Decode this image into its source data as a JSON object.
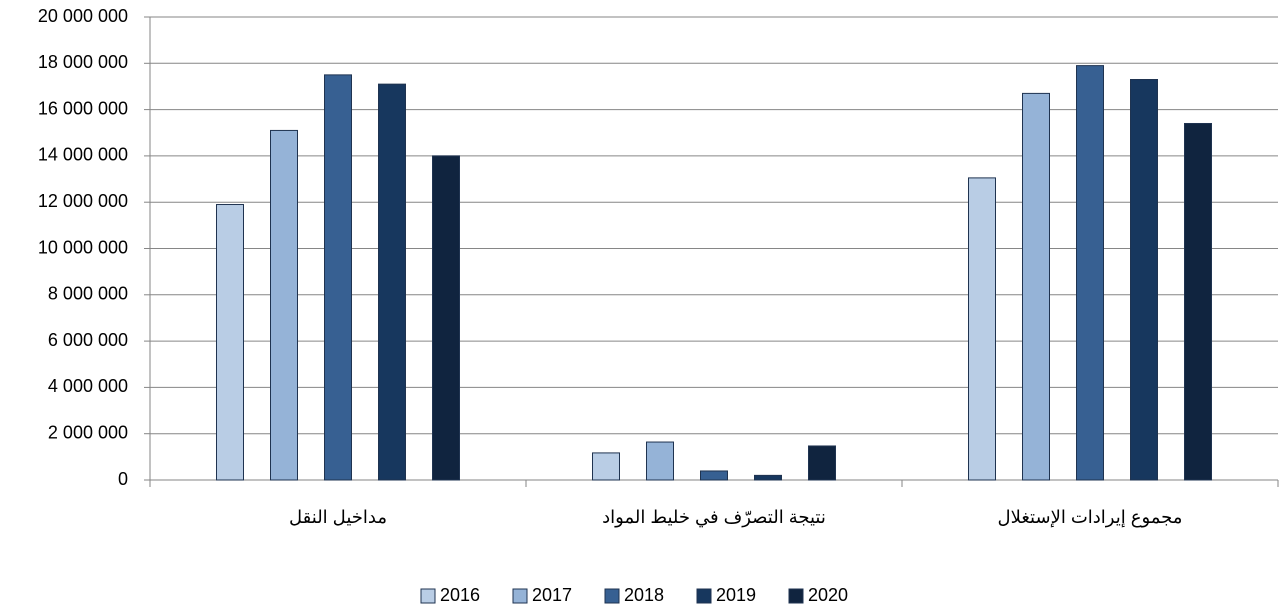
{
  "chart_data": {
    "type": "bar",
    "categories": [
      "مداخيل النقل",
      "نتيجة التصرّف في خليط المواد",
      "مجموع إيرادات الإستغلال"
    ],
    "series": [
      {
        "name": "2016",
        "color": "#b9cde5",
        "values": [
          11900000,
          1170000,
          13050000
        ]
      },
      {
        "name": "2017",
        "color": "#95b3d7",
        "values": [
          15100000,
          1640000,
          16700000
        ]
      },
      {
        "name": "2018",
        "color": "#376092",
        "values": [
          17500000,
          390000,
          17900000
        ]
      },
      {
        "name": "2019",
        "color": "#17375e",
        "values": [
          17100000,
          200000,
          17300000
        ]
      },
      {
        "name": "2020",
        "color": "#10243f",
        "values": [
          14000000,
          1470000,
          15400000
        ]
      }
    ],
    "ylim": [
      0,
      20000000
    ],
    "yticks": [
      0,
      {
        "value": 2000000,
        "label": "2 000 000"
      },
      {
        "value": 4000000,
        "label": "4 000 000"
      },
      {
        "value": 6000000,
        "label": "6 000 000"
      },
      {
        "value": 8000000,
        "label": "8 000 000"
      },
      {
        "value": 10000000,
        "label": "10 000 000"
      },
      {
        "value": 12000000,
        "label": "12 000 000"
      },
      {
        "value": 14000000,
        "label": "14 000 000"
      },
      {
        "value": 16000000,
        "label": "16 000 000"
      },
      {
        "value": 18000000,
        "label": "18 000 000"
      },
      {
        "value": 20000000,
        "label": "20 000 000"
      }
    ],
    "grid": true,
    "legend": "bottom"
  }
}
